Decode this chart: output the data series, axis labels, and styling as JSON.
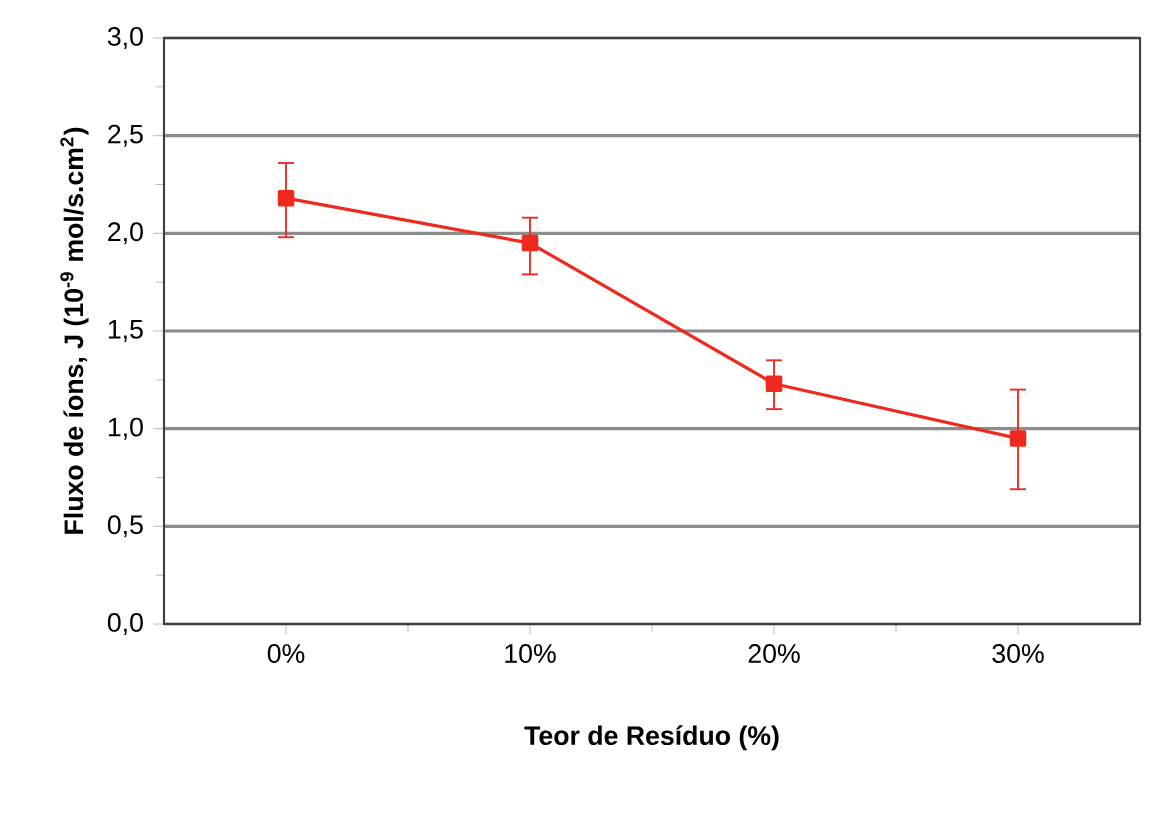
{
  "chart_data": {
    "type": "line",
    "xlabel": "Teor de Resíduo (%)",
    "ylabel": "Fluxo de íons, J (10$^{-9}$ mol/s.cm$^{2}$)",
    "categories": [
      "0%",
      "10%",
      "20%",
      "30%"
    ],
    "series": [
      {
        "color": "#ee2a1e",
        "values": [
          2.18,
          1.95,
          1.23,
          0.95
        ],
        "errors": [
          [
            1.98,
            2.36
          ],
          [
            1.79,
            2.08
          ],
          [
            1.1,
            1.35
          ],
          [
            0.69,
            1.2
          ]
        ]
      }
    ],
    "ylim": [
      0,
      3
    ],
    "yticks": [
      {
        "value": 0,
        "label": "0,0"
      },
      {
        "value": 0.5,
        "label": "0,5"
      },
      {
        "value": 1,
        "label": "1,0"
      },
      {
        "value": 1.5,
        "label": "1,5"
      },
      {
        "value": 2,
        "label": "2,0"
      },
      {
        "value": 2.5,
        "label": "2,5"
      },
      {
        "value": 3,
        "label": "3,0"
      }
    ],
    "grid": "y",
    "marker": "square",
    "line_style": "solid"
  }
}
